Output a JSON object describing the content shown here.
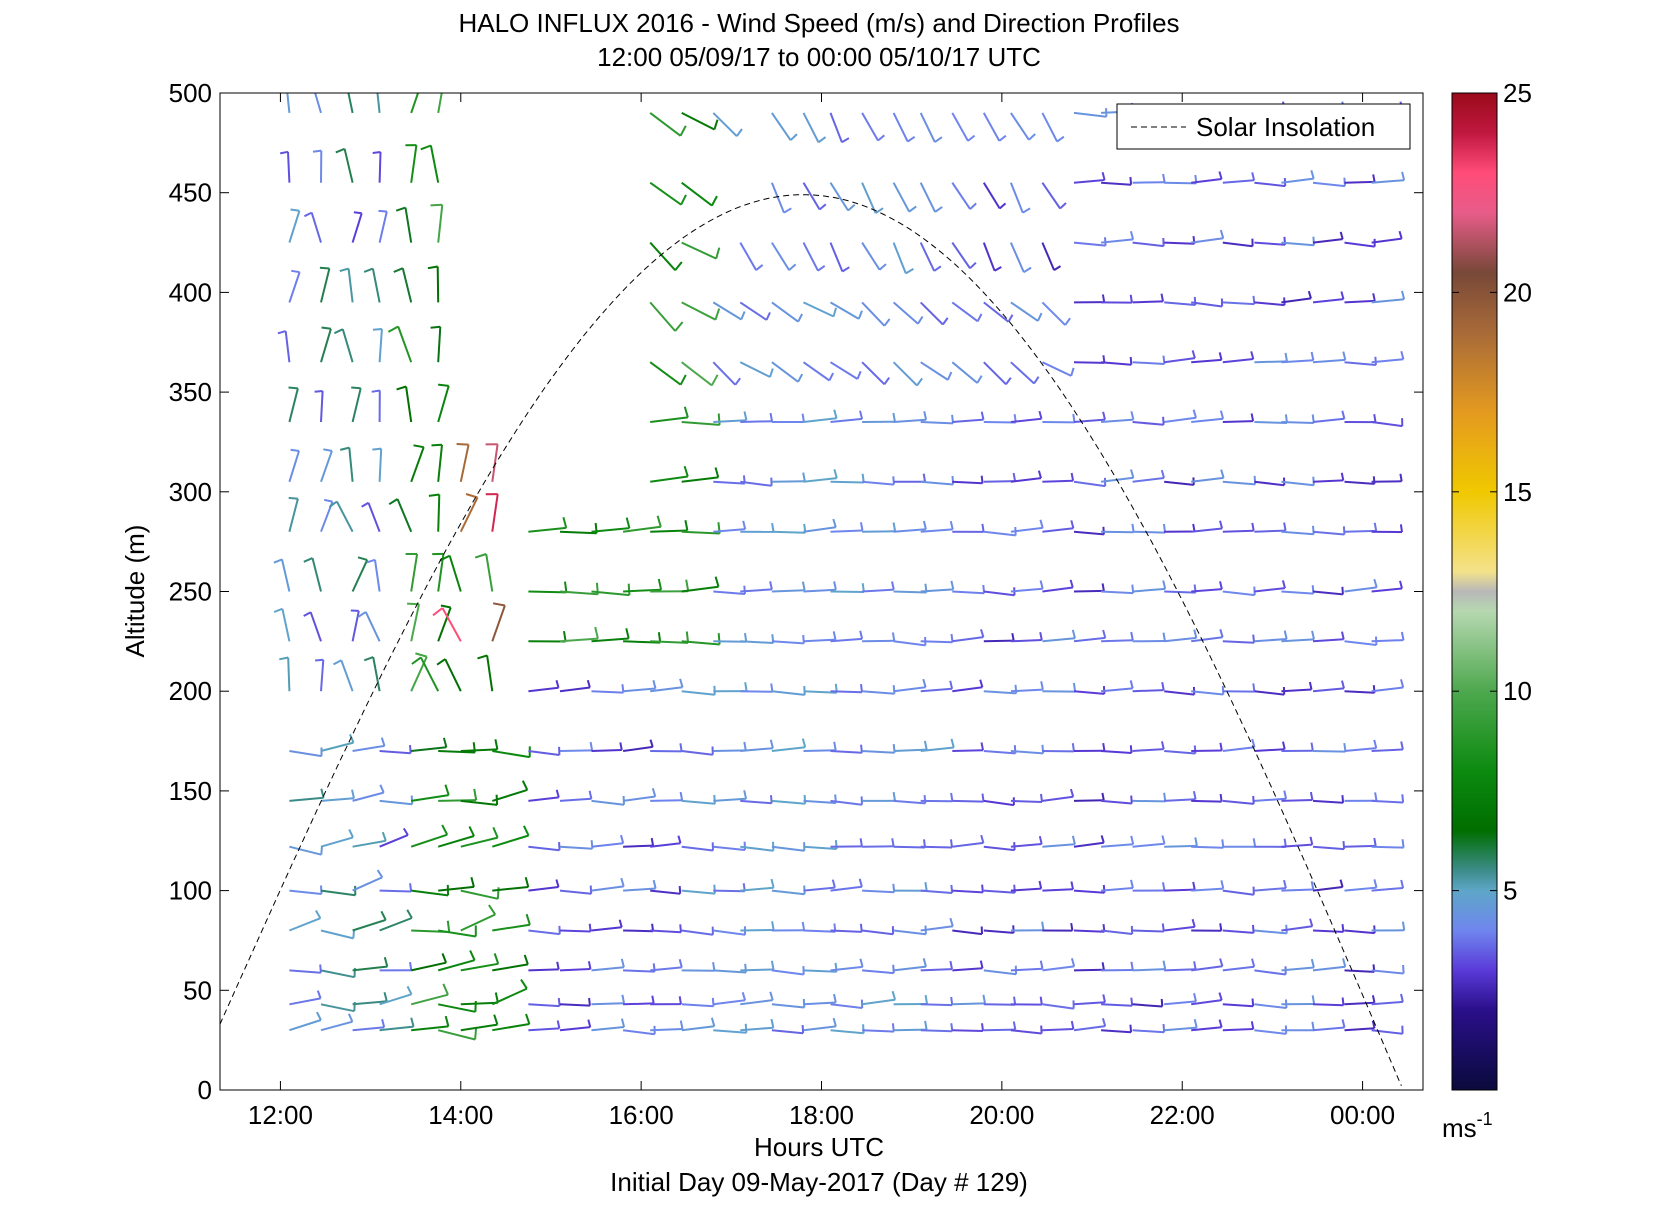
{
  "chart_data": {
    "type": "wind-barb profile",
    "title": "HALO INFLUX 2016 - Wind Speed (m/s) and Direction Profiles",
    "subtitle": "12:00 05/09/17 to 00:00 05/10/17  UTC",
    "xlabel": "Hours UTC",
    "ylabel": "Altitude (m)",
    "footer": "Initial Day 09-May-2017 (Day # 129)",
    "xlim": [
      11.33,
      24.67
    ],
    "ylim": [
      0,
      500
    ],
    "xticks": [
      12,
      14,
      16,
      18,
      20,
      22,
      24
    ],
    "xtick_labels": [
      "12:00",
      "14:00",
      "16:00",
      "18:00",
      "20:00",
      "22:00",
      "00:00"
    ],
    "yticks": [
      0,
      50,
      100,
      150,
      200,
      250,
      300,
      350,
      400,
      450,
      500
    ],
    "ytick_labels": [
      "0",
      "50",
      "100",
      "150",
      "200",
      "250",
      "300",
      "350",
      "400",
      "450",
      "500"
    ],
    "legend": {
      "entry": "Solar Insolation",
      "position": "top-right",
      "style": "dashed"
    },
    "solar_curve": {
      "start_hour": 11.33,
      "peak_hour": 17.8,
      "end_hour": 24.45,
      "peak_altitude": 449,
      "start_altitude": 33,
      "end_altitude": 0
    },
    "colorbar": {
      "range": [
        0,
        25
      ],
      "ticks": [
        5,
        10,
        15,
        20,
        25
      ],
      "tick_labels": [
        "5",
        "10",
        "15",
        "20",
        "25"
      ],
      "unit": "ms",
      "unit_exponent": "-1",
      "stops": [
        {
          "v": 0,
          "c": "#0a0a3c"
        },
        {
          "v": 2,
          "c": "#2a0f8a"
        },
        {
          "v": 3,
          "c": "#5a3ad8"
        },
        {
          "v": 4,
          "c": "#6f86ee"
        },
        {
          "v": 5,
          "c": "#5ea6c8"
        },
        {
          "v": 5.5,
          "c": "#3d8c8a"
        },
        {
          "v": 6.5,
          "c": "#006e00"
        },
        {
          "v": 8,
          "c": "#0c8a10"
        },
        {
          "v": 10,
          "c": "#4ea84e"
        },
        {
          "v": 12,
          "c": "#b6d8b0"
        },
        {
          "v": 12.5,
          "c": "#b8b8b8"
        },
        {
          "v": 13,
          "c": "#f4e28a"
        },
        {
          "v": 15,
          "c": "#f0c800"
        },
        {
          "v": 17,
          "c": "#e49a20"
        },
        {
          "v": 19,
          "c": "#a86a38"
        },
        {
          "v": 20.5,
          "c": "#784838"
        },
        {
          "v": 22,
          "c": "#e85c8a"
        },
        {
          "v": 23,
          "c": "#ff4c78"
        },
        {
          "v": 24,
          "c": "#c01840"
        },
        {
          "v": 25,
          "c": "#9a0a1a"
        }
      ]
    },
    "data_coverage": {
      "hours_early_block": [
        12.1,
        12.45,
        12.8,
        13.1,
        13.45,
        13.75,
        14.0,
        14.35
      ],
      "hours_late_block": [
        14.75,
        15.1,
        15.45,
        15.8,
        16.1,
        16.45,
        16.8,
        17.1,
        17.45,
        17.8,
        18.1,
        18.45,
        18.8,
        19.1,
        19.45,
        19.8,
        20.1,
        20.45,
        20.8,
        21.1,
        21.45,
        21.8,
        22.1,
        22.45,
        22.8,
        23.1,
        23.45,
        23.8,
        24.1
      ],
      "altitudes": [
        30,
        43,
        60,
        80,
        100,
        122,
        145,
        170,
        200,
        225,
        250,
        280,
        305,
        335,
        365,
        395,
        425,
        455,
        490
      ],
      "typical_speed_low_levels_ms": 3.5,
      "typical_speed_midday_ms": 4.5,
      "max_speed_ms": 24
    }
  }
}
